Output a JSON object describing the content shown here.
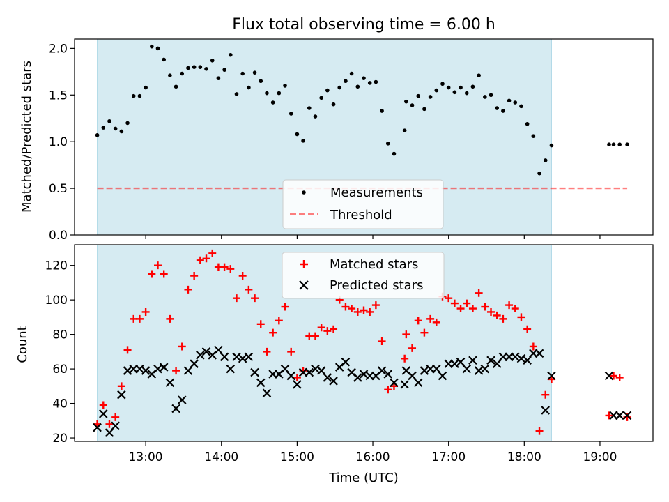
{
  "figure": {
    "title": "Flux total observing time = 6.00 h",
    "xlabel": "Time (UTC)",
    "x_ticks": [
      "13:00",
      "14:00",
      "15:00",
      "16:00",
      "17:00",
      "18:00",
      "19:00"
    ],
    "x_tick_hours": [
      13,
      14,
      15,
      16,
      17,
      18,
      19
    ],
    "xlim_hours": [
      12.06,
      19.7
    ],
    "shade_span_hours": [
      12.36,
      18.36
    ],
    "colors": {
      "shade": "#add8e6",
      "threshold": "#ff0000",
      "matched": "#ff0000",
      "predicted": "#000000",
      "measurement": "#000000"
    }
  },
  "chart_data": [
    {
      "type": "scatter",
      "ylabel": "Matched/Predicted stars",
      "ylim": [
        0,
        2.1
      ],
      "y_ticks": [
        0.0,
        0.5,
        1.0,
        1.5,
        2.0
      ],
      "y_tick_labels": [
        "0.0",
        "0.5",
        "1.0",
        "1.5",
        "2.0"
      ],
      "legend_position": "bottom-center",
      "threshold": {
        "name": "Threshold",
        "y": 0.5,
        "x_range": [
          12.36,
          19.36
        ]
      },
      "series": [
        {
          "name": "Measurements",
          "x": [
            12.36,
            12.44,
            12.52,
            12.6,
            12.68,
            12.76,
            12.84,
            12.92,
            13.0,
            13.08,
            13.16,
            13.24,
            13.32,
            13.4,
            13.48,
            13.56,
            13.64,
            13.72,
            13.8,
            13.88,
            13.96,
            14.04,
            14.12,
            14.2,
            14.28,
            14.36,
            14.44,
            14.52,
            14.6,
            14.68,
            14.76,
            14.84,
            14.92,
            15.0,
            15.08,
            15.16,
            15.24,
            15.32,
            15.4,
            15.48,
            15.56,
            15.64,
            15.72,
            15.8,
            15.88,
            15.96,
            16.04,
            16.12,
            16.2,
            16.28,
            16.42,
            16.44,
            16.52,
            16.6,
            16.68,
            16.76,
            16.84,
            16.92,
            17.0,
            17.08,
            17.16,
            17.24,
            17.32,
            17.4,
            17.48,
            17.56,
            17.64,
            17.72,
            17.8,
            17.88,
            17.96,
            18.04,
            18.12,
            18.2,
            18.28,
            18.36,
            19.12,
            19.18,
            19.26,
            19.36
          ],
          "y": [
            1.07,
            1.15,
            1.22,
            1.14,
            1.11,
            1.2,
            1.49,
            1.49,
            1.58,
            2.02,
            2.0,
            1.88,
            1.71,
            1.59,
            1.73,
            1.79,
            1.8,
            1.8,
            1.78,
            1.87,
            1.68,
            1.77,
            1.93,
            1.51,
            1.73,
            1.58,
            1.74,
            1.65,
            1.52,
            1.42,
            1.52,
            1.6,
            1.3,
            1.08,
            1.01,
            1.36,
            1.27,
            1.47,
            1.55,
            1.4,
            1.58,
            1.65,
            1.73,
            1.59,
            1.68,
            1.63,
            1.64,
            1.33,
            0.98,
            0.87,
            1.12,
            1.43,
            1.39,
            1.49,
            1.35,
            1.48,
            1.55,
            1.62,
            1.58,
            1.53,
            1.58,
            1.52,
            1.59,
            1.71,
            1.48,
            1.5,
            1.36,
            1.33,
            1.44,
            1.42,
            1.38,
            1.19,
            1.06,
            0.66,
            0.8,
            0.96,
            0.97,
            0.97,
            0.97,
            0.97
          ]
        }
      ]
    },
    {
      "type": "scatter",
      "ylabel": "Count",
      "ylim": [
        18,
        132
      ],
      "y_ticks": [
        20,
        40,
        60,
        80,
        100,
        120
      ],
      "y_tick_labels": [
        "20",
        "40",
        "60",
        "80",
        "100",
        "120"
      ],
      "legend_position": "top-center",
      "series": [
        {
          "name": "Matched stars",
          "x": [
            12.36,
            12.44,
            12.52,
            12.6,
            12.68,
            12.76,
            12.84,
            12.92,
            13.0,
            13.08,
            13.16,
            13.24,
            13.32,
            13.4,
            13.48,
            13.56,
            13.64,
            13.72,
            13.8,
            13.88,
            13.96,
            14.04,
            14.12,
            14.2,
            14.28,
            14.36,
            14.44,
            14.52,
            14.6,
            14.68,
            14.76,
            14.84,
            14.92,
            15.0,
            15.08,
            15.16,
            15.24,
            15.32,
            15.4,
            15.48,
            15.56,
            15.64,
            15.72,
            15.8,
            15.88,
            15.96,
            16.04,
            16.12,
            16.2,
            16.28,
            16.42,
            16.44,
            16.52,
            16.6,
            16.68,
            16.76,
            16.84,
            16.92,
            17.0,
            17.08,
            17.16,
            17.24,
            17.32,
            17.4,
            17.48,
            17.56,
            17.64,
            17.72,
            17.8,
            17.88,
            17.96,
            18.04,
            18.12,
            18.2,
            18.28,
            18.36,
            19.12,
            19.18,
            19.26,
            19.36
          ],
          "y": [
            28,
            39,
            28,
            32,
            50,
            71,
            89,
            89,
            93,
            115,
            120,
            115,
            89,
            59,
            73,
            106,
            114,
            123,
            124,
            127,
            119,
            119,
            118,
            101,
            114,
            106,
            101,
            86,
            70,
            81,
            88,
            96,
            70,
            55,
            59,
            79,
            79,
            84,
            82,
            83,
            100,
            96,
            95,
            93,
            94,
            93,
            97,
            76,
            48,
            50,
            66,
            80,
            72,
            88,
            81,
            89,
            87,
            102,
            101,
            98,
            95,
            98,
            95,
            104,
            96,
            93,
            91,
            89,
            97,
            95,
            90,
            83,
            73,
            24,
            45,
            54,
            33,
            56,
            55,
            32
          ]
        },
        {
          "name": "Predicted stars",
          "x": [
            12.36,
            12.44,
            12.52,
            12.6,
            12.68,
            12.76,
            12.84,
            12.92,
            13.0,
            13.08,
            13.16,
            13.24,
            13.32,
            13.4,
            13.48,
            13.56,
            13.64,
            13.72,
            13.8,
            13.88,
            13.96,
            14.04,
            14.12,
            14.2,
            14.28,
            14.36,
            14.44,
            14.52,
            14.6,
            14.68,
            14.76,
            14.84,
            14.92,
            15.0,
            15.08,
            15.16,
            15.24,
            15.32,
            15.4,
            15.48,
            15.56,
            15.64,
            15.72,
            15.8,
            15.88,
            15.96,
            16.04,
            16.12,
            16.2,
            16.28,
            16.42,
            16.44,
            16.52,
            16.6,
            16.68,
            16.76,
            16.84,
            16.92,
            17.0,
            17.08,
            17.16,
            17.24,
            17.32,
            17.4,
            17.48,
            17.56,
            17.64,
            17.72,
            17.8,
            17.88,
            17.96,
            18.04,
            18.12,
            18.2,
            18.28,
            18.36,
            19.12,
            19.18,
            19.26,
            19.36
          ],
          "y": [
            26,
            34,
            23,
            27,
            45,
            59,
            60,
            60,
            59,
            57,
            60,
            61,
            52,
            37,
            42,
            59,
            63,
            68,
            70,
            68,
            71,
            67,
            60,
            67,
            66,
            67,
            58,
            52,
            46,
            57,
            57,
            60,
            56,
            51,
            58,
            58,
            60,
            59,
            55,
            53,
            61,
            64,
            58,
            55,
            57,
            56,
            56,
            59,
            57,
            52,
            51,
            59,
            56,
            52,
            59,
            60,
            60,
            56,
            63,
            63,
            64,
            60,
            65,
            59,
            60,
            65,
            63,
            67,
            67,
            67,
            66,
            65,
            69,
            69,
            36,
            56,
            56,
            33,
            33,
            33
          ]
        }
      ]
    }
  ]
}
